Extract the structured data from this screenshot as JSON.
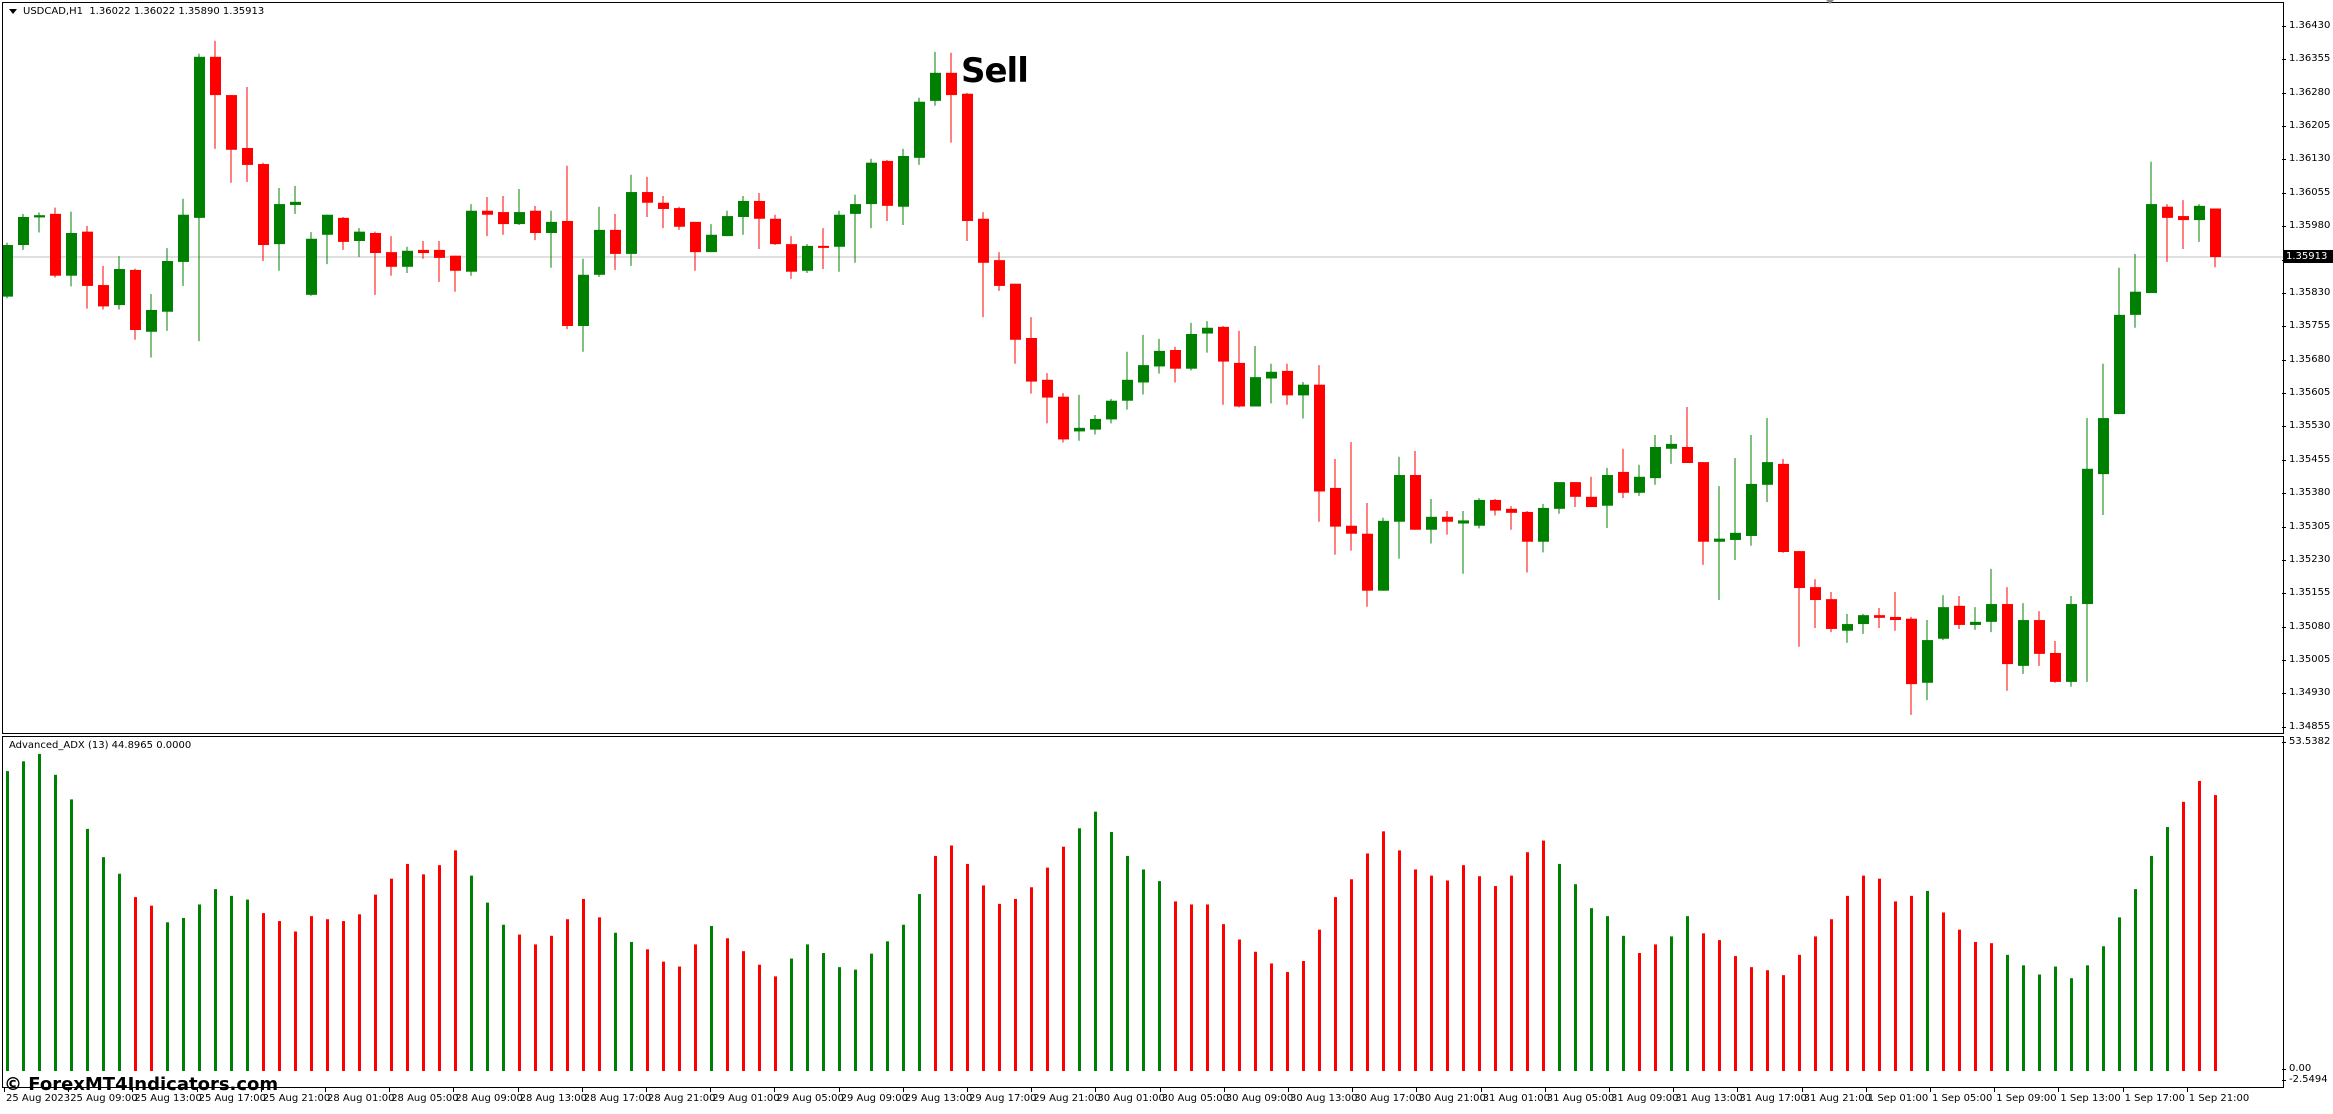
{
  "header": {
    "symbol_tf": "USDCAD,H1",
    "ohlc_text": "1.36022 1.36022 1.35890 1.35913"
  },
  "indicator": {
    "title": "Advanced_ADX (13) 44.8965 0.0000",
    "axis_max_label": "53.5382",
    "axis_zero_label": "0.00",
    "axis_min_label": "-2.5494"
  },
  "annotation": {
    "sell_label": "Sell",
    "sell_candle_index": 59
  },
  "watermark": "© ForexMT4Indicators.com",
  "current_price": "1.35913",
  "colors": {
    "bull": "#008000",
    "bear": "#ff0000",
    "price_line": "#c0c0c0",
    "axis": "#000000",
    "background": "#ffffff"
  },
  "price_axis_ticks": [
    "1.36430",
    "1.36355",
    "1.36280",
    "1.36205",
    "1.36130",
    "1.36055",
    "1.35980",
    "1.35905",
    "1.35830",
    "1.35755",
    "1.35680",
    "1.35605",
    "1.35530",
    "1.35455",
    "1.35380",
    "1.35305",
    "1.35230",
    "1.35155",
    "1.35080",
    "1.35005",
    "1.34930",
    "1.34855"
  ],
  "time_axis_labels": [
    "25 Aug 2023",
    "25 Aug 09:00",
    "25 Aug 13:00",
    "25 Aug 17:00",
    "25 Aug 21:00",
    "28 Aug 01:00",
    "28 Aug 05:00",
    "28 Aug 09:00",
    "28 Aug 13:00",
    "28 Aug 17:00",
    "28 Aug 21:00",
    "29 Aug 01:00",
    "29 Aug 05:00",
    "29 Aug 09:00",
    "29 Aug 13:00",
    "29 Aug 17:00",
    "29 Aug 21:00",
    "30 Aug 01:00",
    "30 Aug 05:00",
    "30 Aug 09:00",
    "30 Aug 13:00",
    "30 Aug 17:00",
    "30 Aug 21:00",
    "31 Aug 01:00",
    "31 Aug 05:00",
    "31 Aug 09:00",
    "31 Aug 13:00",
    "31 Aug 17:00",
    "31 Aug 21:00",
    "1 Sep 01:00",
    "1 Sep 05:00",
    "1 Sep 09:00",
    "1 Sep 13:00",
    "1 Sep 17:00",
    "1 Sep 21:00"
  ],
  "chart_data": [
    {
      "type": "candlestick",
      "title": "USDCAD,H1",
      "ylim": [
        1.34855,
        1.3643
      ],
      "grid": false,
      "columns": [
        "open",
        "high",
        "low",
        "close"
      ],
      "candles": [
        [
          1.35824,
          1.35945,
          1.3582,
          1.3594
        ],
        [
          1.3594,
          1.3601,
          1.35929,
          1.36003
        ],
        [
          1.36002,
          1.36013,
          1.35968,
          1.36007
        ],
        [
          1.3601,
          1.36024,
          1.35867,
          1.35871
        ],
        [
          1.35871,
          1.36015,
          1.35847,
          1.35967
        ],
        [
          1.3597,
          1.35983,
          1.35797,
          1.35848
        ],
        [
          1.3585,
          1.35893,
          1.35795,
          1.35802
        ],
        [
          1.35805,
          1.35915,
          1.35795,
          1.35886
        ],
        [
          1.35884,
          1.35887,
          1.35727,
          1.35749
        ],
        [
          1.35745,
          1.3583,
          1.35687,
          1.35794
        ],
        [
          1.3579,
          1.35933,
          1.35747,
          1.35904
        ],
        [
          1.35902,
          1.36044,
          1.35848,
          1.36008
        ],
        [
          1.36001,
          1.3637,
          1.35724,
          1.36363
        ],
        [
          1.36363,
          1.36399,
          1.36156,
          1.36277
        ],
        [
          1.36277,
          1.36277,
          1.3608,
          1.36154
        ],
        [
          1.36158,
          1.36295,
          1.36082,
          1.3612
        ],
        [
          1.36122,
          1.36125,
          1.35904,
          1.3594
        ],
        [
          1.35942,
          1.36068,
          1.35882,
          1.36032
        ],
        [
          1.3603,
          1.36073,
          1.3601,
          1.36037
        ],
        [
          1.35828,
          1.35969,
          1.35826,
          1.35954
        ],
        [
          1.35963,
          1.36008,
          1.35897,
          1.36008
        ],
        [
          1.36001,
          1.36003,
          1.35929,
          1.35947
        ],
        [
          1.35949,
          1.35978,
          1.35913,
          1.3597
        ],
        [
          1.35967,
          1.3597,
          1.35828,
          1.35922
        ],
        [
          1.35924,
          1.3596,
          1.35871,
          1.35891
        ],
        [
          1.35891,
          1.35936,
          1.35877,
          1.35927
        ],
        [
          1.35929,
          1.35949,
          1.35909,
          1.35922
        ],
        [
          1.35929,
          1.35949,
          1.35857,
          1.35911
        ],
        [
          1.35916,
          1.35916,
          1.35835,
          1.35882
        ],
        [
          1.3588,
          1.36032,
          1.35871,
          1.36017
        ],
        [
          1.36017,
          1.36048,
          1.3596,
          1.36008
        ],
        [
          1.36014,
          1.3605,
          1.35963,
          1.35987
        ],
        [
          1.35987,
          1.36066,
          1.35985,
          1.36014
        ],
        [
          1.36017,
          1.36028,
          1.35951,
          1.35967
        ],
        [
          1.35967,
          1.36017,
          1.35889,
          1.35992
        ],
        [
          1.35994,
          1.36118,
          1.35751,
          1.35758
        ],
        [
          1.35758,
          1.35909,
          1.357,
          1.35873
        ],
        [
          1.35873,
          1.36026,
          1.35868,
          1.35974
        ],
        [
          1.35974,
          1.3601,
          1.35884,
          1.3592
        ],
        [
          1.3592,
          1.36098,
          1.35893,
          1.36059
        ],
        [
          1.36059,
          1.36093,
          1.36003,
          1.36035
        ],
        [
          1.36035,
          1.3605,
          1.35978,
          1.36021
        ],
        [
          1.36023,
          1.36026,
          1.35974,
          1.35981
        ],
        [
          1.35992,
          1.35992,
          1.35882,
          1.35924
        ],
        [
          1.35924,
          1.35987,
          1.35924,
          1.35963
        ],
        [
          1.3596,
          1.36017,
          1.3596,
          1.36005
        ],
        [
          1.36003,
          1.3605,
          1.35963,
          1.36039
        ],
        [
          1.36039,
          1.36057,
          1.35931,
          1.35999
        ],
        [
          1.35999,
          1.36008,
          1.3594,
          1.35942
        ],
        [
          1.35942,
          1.3596,
          1.35864,
          1.3588
        ],
        [
          1.35882,
          1.35942,
          1.35877,
          1.35938
        ],
        [
          1.35938,
          1.35978,
          1.35886,
          1.35936
        ],
        [
          1.35936,
          1.36017,
          1.3588,
          1.36008
        ],
        [
          1.3601,
          1.36053,
          1.359,
          1.36032
        ],
        [
          1.36032,
          1.36134,
          1.35978,
          1.36125
        ],
        [
          1.36129,
          1.36131,
          1.35994,
          1.36028
        ],
        [
          1.36026,
          1.36156,
          1.35985,
          1.3614
        ],
        [
          1.36136,
          1.36271,
          1.3612,
          1.36262
        ],
        [
          1.36264,
          1.36374,
          1.36253,
          1.36327
        ],
        [
          1.36327,
          1.36372,
          1.3617,
          1.36277
        ],
        [
          1.3628,
          1.36282,
          1.35949,
          1.35994
        ],
        [
          1.35999,
          1.36014,
          1.35778,
          1.359
        ],
        [
          1.35906,
          1.35924,
          1.35837,
          1.35848
        ],
        [
          1.35853,
          1.35853,
          1.35673,
          1.35727
        ],
        [
          1.35731,
          1.35778,
          1.35606,
          1.35633
        ],
        [
          1.35637,
          1.35652,
          1.35539,
          1.35597
        ],
        [
          1.35599,
          1.35607,
          1.35496,
          1.35503
        ],
        [
          1.35521,
          1.35603,
          1.355,
          1.35529
        ],
        [
          1.35525,
          1.35558,
          1.35514,
          1.35549
        ],
        [
          1.35548,
          1.35594,
          1.35539,
          1.3559
        ],
        [
          1.3559,
          1.357,
          1.3557,
          1.35637
        ],
        [
          1.35631,
          1.35738,
          1.35604,
          1.3567
        ],
        [
          1.35667,
          1.35729,
          1.35651,
          1.35702
        ],
        [
          1.35704,
          1.35711,
          1.35631,
          1.35662
        ],
        [
          1.35662,
          1.35765,
          1.35658,
          1.3574
        ],
        [
          1.35741,
          1.35769,
          1.35698,
          1.35754
        ],
        [
          1.35756,
          1.35758,
          1.35581,
          1.35678
        ],
        [
          1.35675,
          1.35747,
          1.35575,
          1.35577
        ],
        [
          1.35577,
          1.35713,
          1.35577,
          1.35643
        ],
        [
          1.3564,
          1.35673,
          1.35584,
          1.35655
        ],
        [
          1.35657,
          1.35673,
          1.35581,
          1.35602
        ],
        [
          1.35602,
          1.35632,
          1.3555,
          1.35626
        ],
        [
          1.35626,
          1.3567,
          1.35318,
          1.35386
        ],
        [
          1.35394,
          1.35459,
          1.35244,
          1.35307
        ],
        [
          1.35309,
          1.35497,
          1.35253,
          1.35291
        ],
        [
          1.35291,
          1.3536,
          1.35127,
          1.35163
        ],
        [
          1.35163,
          1.35327,
          1.35163,
          1.3532
        ],
        [
          1.35318,
          1.35464,
          1.35235,
          1.35423
        ],
        [
          1.35423,
          1.35477,
          1.353,
          1.353
        ],
        [
          1.353,
          1.35369,
          1.35269,
          1.35329
        ],
        [
          1.35329,
          1.35342,
          1.35289,
          1.35318
        ],
        [
          1.35314,
          1.35342,
          1.35201,
          1.35321
        ],
        [
          1.35309,
          1.35371,
          1.35303,
          1.35367
        ],
        [
          1.35367,
          1.35369,
          1.35332,
          1.35343
        ],
        [
          1.35347,
          1.35353,
          1.353,
          1.35338
        ],
        [
          1.3534,
          1.35342,
          1.35204,
          1.35273
        ],
        [
          1.35273,
          1.35358,
          1.35249,
          1.35349
        ],
        [
          1.35347,
          1.35407,
          1.35336,
          1.35407
        ],
        [
          1.35407,
          1.35407,
          1.35351,
          1.35374
        ],
        [
          1.35374,
          1.35419,
          1.35351,
          1.35351
        ],
        [
          1.35354,
          1.35439,
          1.35304,
          1.35423
        ],
        [
          1.3543,
          1.35482,
          1.35371,
          1.35383
        ],
        [
          1.35383,
          1.35446,
          1.35376,
          1.35419
        ],
        [
          1.35416,
          1.35513,
          1.35401,
          1.35486
        ],
        [
          1.35482,
          1.35513,
          1.35448,
          1.35493
        ],
        [
          1.35486,
          1.35576,
          1.3545,
          1.3545
        ],
        [
          1.35452,
          1.35452,
          1.35221,
          1.35273
        ],
        [
          1.35273,
          1.35398,
          1.35142,
          1.3528
        ],
        [
          1.35277,
          1.35461,
          1.35232,
          1.35293
        ],
        [
          1.35286,
          1.35513,
          1.35264,
          1.35403
        ],
        [
          1.35401,
          1.35551,
          1.35362,
          1.35452
        ],
        [
          1.35448,
          1.35459,
          1.35248,
          1.3525
        ],
        [
          1.35252,
          1.35252,
          1.35037,
          1.35169
        ],
        [
          1.35171,
          1.35189,
          1.35079,
          1.35142
        ],
        [
          1.35144,
          1.3516,
          1.3507,
          1.35077
        ],
        [
          1.35073,
          1.35111,
          1.35046,
          1.35088
        ],
        [
          1.35088,
          1.35111,
          1.35066,
          1.35108
        ],
        [
          1.35108,
          1.35124,
          1.35079,
          1.35102
        ],
        [
          1.35104,
          1.3516,
          1.35073,
          1.35097
        ],
        [
          1.351,
          1.35104,
          1.34884,
          1.34953
        ],
        [
          1.34956,
          1.35097,
          1.34917,
          1.35052
        ],
        [
          1.35055,
          1.35153,
          1.35052,
          1.35126
        ],
        [
          1.35129,
          1.35151,
          1.35077,
          1.35086
        ],
        [
          1.35086,
          1.35126,
          1.35075,
          1.35093
        ],
        [
          1.35093,
          1.35212,
          1.3507,
          1.35133
        ],
        [
          1.35133,
          1.35171,
          1.34938,
          1.34998
        ],
        [
          1.34994,
          1.35135,
          1.34976,
          1.35097
        ],
        [
          1.35097,
          1.35117,
          1.34994,
          1.35021
        ],
        [
          1.35023,
          1.3505,
          1.34956,
          1.34958
        ],
        [
          1.34958,
          1.35151,
          1.34947,
          1.35133
        ],
        [
          1.35133,
          1.35551,
          1.34958,
          1.35437
        ],
        [
          1.35425,
          1.35673,
          1.35333,
          1.35551
        ],
        [
          1.3556,
          1.35889,
          1.3556,
          1.35783
        ],
        [
          1.35783,
          1.3592,
          1.35754,
          1.35835
        ],
        [
          1.35832,
          1.36127,
          1.35832,
          1.36032
        ],
        [
          1.36026,
          1.36032,
          1.35902,
          1.36001
        ],
        [
          1.36005,
          1.36041,
          1.35931,
          1.35996
        ],
        [
          1.35996,
          1.36032,
          1.35947,
          1.36028
        ],
        [
          1.36022,
          1.36022,
          1.3589,
          1.35913
        ]
      ]
    },
    {
      "type": "bar",
      "title": "Advanced_ADX (13)",
      "ylim": [
        -2.5494,
        53.5382
      ],
      "series": [
        {
          "name": "ADX",
          "values": [
            48.8,
            50.4,
            51.6,
            48.2,
            44.2,
            39.4,
            34.8,
            32.1,
            28.3,
            26.9,
            24.2,
            24.9,
            27.1,
            29.6,
            28.5,
            27.9,
            25.7,
            24.4,
            22.7,
            25.2,
            24.7,
            24.4,
            25.5,
            28.7,
            31.3,
            33.7,
            32.0,
            33.5,
            35.9,
            31.8,
            27.4,
            23.8,
            22.2,
            20.6,
            22.0,
            24.7,
            28.0,
            25.0,
            22.5,
            21.0,
            19.8,
            17.8,
            17.0,
            20.6,
            23.6,
            21.6,
            19.5,
            17.3,
            15.4,
            18.3,
            20.6,
            19.2,
            16.9,
            16.5,
            19.1,
            21.1,
            23.8,
            28.8,
            35.0,
            36.7,
            33.7,
            30.2,
            27.2,
            28.0,
            29.9,
            33.1,
            36.5,
            39.5,
            42.2,
            38.9,
            35.0,
            32.8,
            30.9,
            27.6,
            27.1,
            27.1,
            23.9,
            21.4,
            19.4,
            17.5,
            16.1,
            17.9,
            23.0,
            28.3,
            31.2,
            35.4,
            39.0,
            35.9,
            32.8,
            31.8,
            31.0,
            33.5,
            31.7,
            30.1,
            31.8,
            35.6,
            37.5,
            33.7,
            30.4,
            26.5,
            25.2,
            22.0,
            19.2,
            20.6,
            21.9,
            25.2,
            22.4,
            21.3,
            18.7,
            16.9,
            16.4,
            15.6,
            18.9,
            21.9,
            24.7,
            28.5,
            31.8,
            31.3,
            27.6,
            28.5,
            29.3,
            25.8,
            23.0,
            21.0,
            20.8,
            18.9,
            17.2,
            15.7,
            17.0,
            15.1,
            17.2,
            20.3,
            25.0,
            29.6,
            35.0,
            39.7,
            43.8,
            47.2,
            44.9
          ],
          "colors": "gggggggg rrggggggrrrrrrrrrrrrr ggg rrrrrr gg rrrr g rrrr ggggggggg rrrrrrrrr gggggg rrrrrrrrrrrrrrrrrrrrrrrr ggggg rr gg rrrrrrrrrrrrrr g rrrr ggggggggggg"
        }
      ]
    }
  ]
}
